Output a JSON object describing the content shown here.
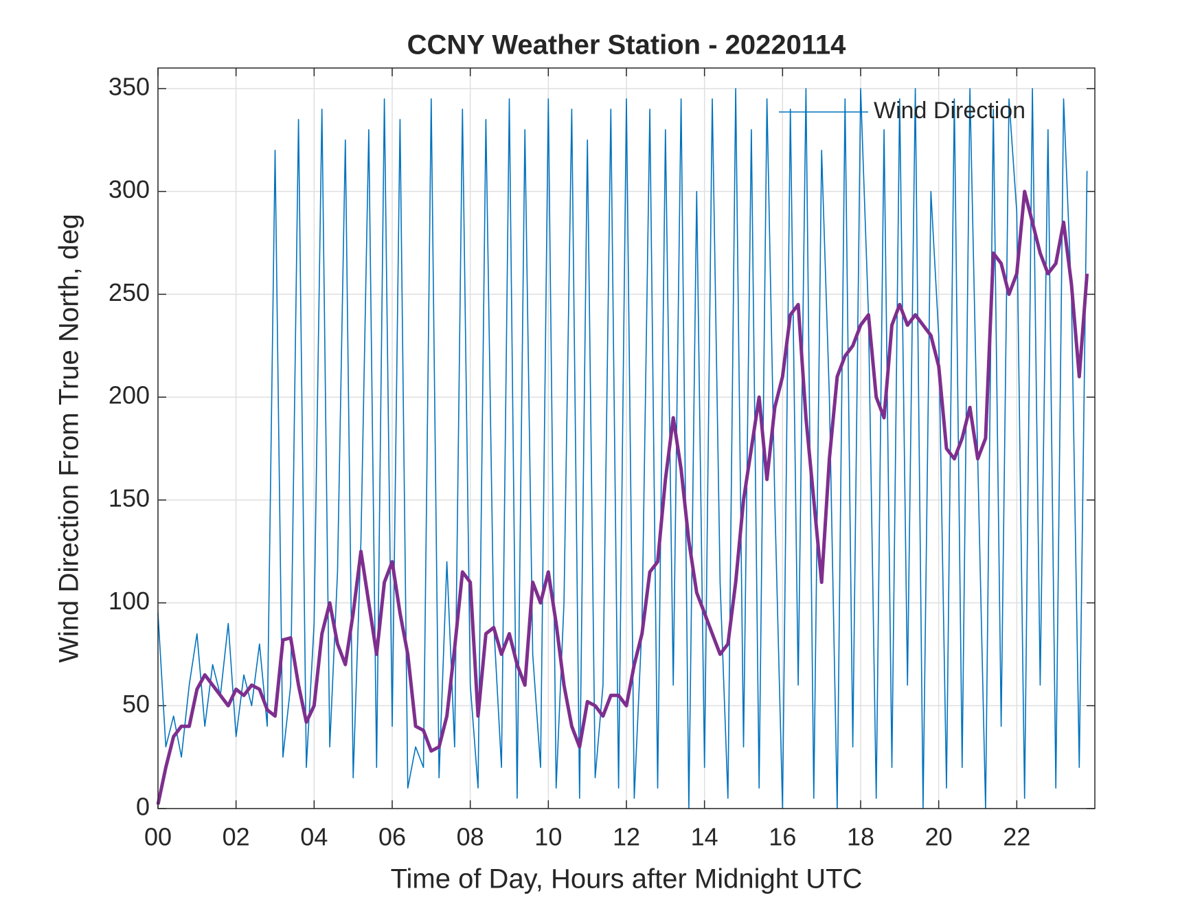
{
  "chart_data": {
    "type": "line",
    "title": "CCNY Weather Station - 20220114",
    "x_label": "Time of Day, Hours after Midnight UTC",
    "y_label": "Wind Direction From True North, deg",
    "xlim": [
      0,
      24
    ],
    "ylim": [
      0,
      360
    ],
    "xticks": [
      {
        "value": 0,
        "label": "00"
      },
      {
        "value": 2,
        "label": "02"
      },
      {
        "value": 4,
        "label": "04"
      },
      {
        "value": 6,
        "label": "06"
      },
      {
        "value": 8,
        "label": "08"
      },
      {
        "value": 10,
        "label": "10"
      },
      {
        "value": 12,
        "label": "12"
      },
      {
        "value": 14,
        "label": "14"
      },
      {
        "value": 16,
        "label": "16"
      },
      {
        "value": 18,
        "label": "18"
      },
      {
        "value": 20,
        "label": "20"
      },
      {
        "value": 22,
        "label": "22"
      }
    ],
    "yticks": [
      0,
      50,
      100,
      150,
      200,
      250,
      300,
      350
    ],
    "grid": true,
    "legend": "northeast",
    "x": [
      0,
      0.2,
      0.4,
      0.6,
      0.8,
      1,
      1.2,
      1.4,
      1.6,
      1.8,
      2,
      2.2,
      2.4,
      2.6,
      2.8,
      3,
      3.2,
      3.4,
      3.6,
      3.8,
      4,
      4.2,
      4.4,
      4.6,
      4.8,
      5,
      5.2,
      5.4,
      5.6,
      5.8,
      6,
      6.2,
      6.4,
      6.6,
      6.8,
      7,
      7.2,
      7.4,
      7.6,
      7.8,
      8,
      8.2,
      8.4,
      8.6,
      8.8,
      9,
      9.2,
      9.4,
      9.6,
      9.8,
      10,
      10.2,
      10.4,
      10.6,
      10.8,
      11,
      11.2,
      11.4,
      11.6,
      11.8,
      12,
      12.2,
      12.4,
      12.6,
      12.8,
      13,
      13.2,
      13.4,
      13.6,
      13.8,
      14,
      14.2,
      14.4,
      14.6,
      14.8,
      15,
      15.2,
      15.4,
      15.6,
      15.8,
      16,
      16.2,
      16.4,
      16.6,
      16.8,
      17,
      17.2,
      17.4,
      17.6,
      17.8,
      18,
      18.2,
      18.4,
      18.6,
      18.8,
      19,
      19.2,
      19.4,
      19.6,
      19.8,
      20,
      20.2,
      20.4,
      20.6,
      20.8,
      21,
      21.2,
      21.4,
      21.6,
      21.8,
      22,
      22.2,
      22.4,
      22.6,
      22.8,
      23,
      23.2,
      23.4,
      23.6,
      23.8
    ],
    "series": [
      {
        "name": "Wind Direction",
        "color": "#0072BD",
        "values": [
          95,
          30,
          45,
          25,
          60,
          85,
          40,
          70,
          55,
          90,
          35,
          65,
          50,
          80,
          40,
          320,
          25,
          60,
          335,
          20,
          90,
          340,
          30,
          115,
          325,
          15,
          130,
          330,
          20,
          345,
          40,
          335,
          10,
          30,
          20,
          345,
          15,
          120,
          30,
          340,
          60,
          10,
          335,
          90,
          20,
          345,
          5,
          330,
          75,
          20,
          345,
          10,
          100,
          340,
          5,
          325,
          15,
          60,
          340,
          10,
          345,
          5,
          90,
          340,
          10,
          330,
          60,
          345,
          0,
          300,
          20,
          345,
          110,
          5,
          350,
          30,
          330,
          10,
          345,
          150,
          0,
          340,
          60,
          350,
          5,
          320,
          200,
          0,
          345,
          30,
          350,
          240,
          5,
          330,
          20,
          345,
          60,
          350,
          0,
          300,
          230,
          10,
          345,
          20,
          350,
          170,
          0,
          340,
          40,
          345,
          290,
          5,
          350,
          60,
          330,
          10,
          345,
          250,
          20,
          310
        ]
      },
      {
        "color": "#7E2F8E",
        "values": [
          2,
          20,
          35,
          40,
          40,
          58,
          65,
          60,
          55,
          50,
          58,
          55,
          60,
          58,
          48,
          45,
          82,
          83,
          60,
          42,
          50,
          85,
          100,
          80,
          70,
          95,
          125,
          100,
          75,
          110,
          120,
          95,
          75,
          40,
          38,
          28,
          30,
          45,
          78,
          115,
          110,
          45,
          85,
          88,
          75,
          85,
          70,
          60,
          110,
          100,
          115,
          90,
          60,
          40,
          30,
          52,
          50,
          45,
          55,
          55,
          50,
          70,
          85,
          115,
          120,
          160,
          190,
          165,
          130,
          105,
          95,
          85,
          75,
          80,
          110,
          150,
          175,
          200,
          160,
          195,
          210,
          240,
          245,
          190,
          150,
          110,
          170,
          210,
          220,
          225,
          235,
          240,
          200,
          190,
          235,
          245,
          235,
          240,
          235,
          230,
          215,
          175,
          170,
          180,
          195,
          170,
          180,
          270,
          265,
          250,
          260,
          300,
          285,
          270,
          260,
          265,
          285,
          255,
          210,
          260
        ]
      }
    ]
  }
}
